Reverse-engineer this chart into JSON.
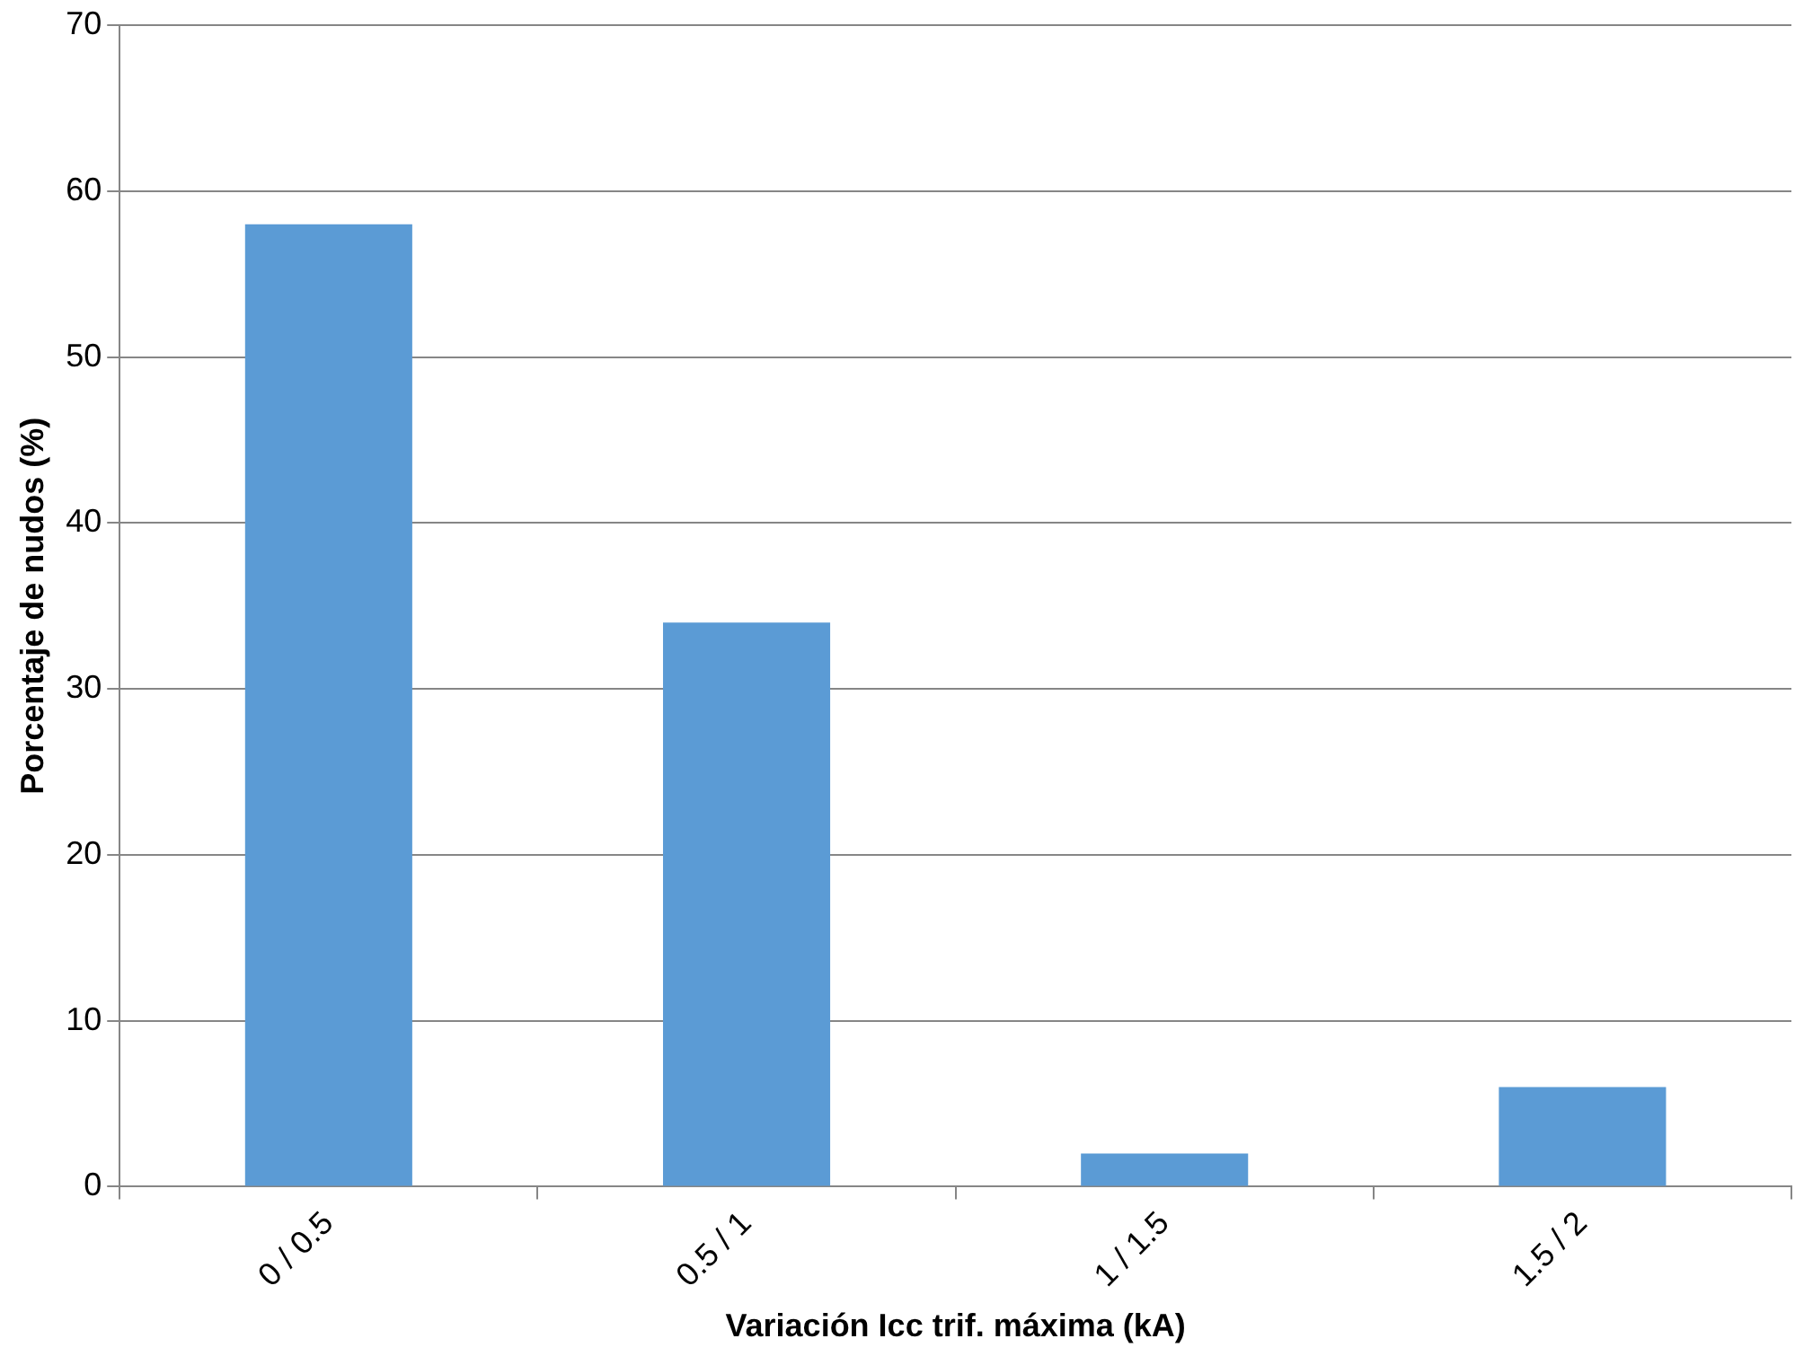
{
  "chart_data": {
    "type": "bar",
    "categories": [
      "0 / 0.5",
      "0.5 / 1",
      "1 / 1.5",
      "1.5 / 2"
    ],
    "values": [
      58,
      34,
      2,
      6
    ],
    "color": "#5b9bd5",
    "xlabel": "Variación Icc trif. máxima (kA)",
    "ylabel": "Porcentaje de nudos (%)",
    "ylim": [
      0,
      70
    ],
    "yticks": [
      0,
      10,
      20,
      30,
      40,
      50,
      60,
      70
    ],
    "grid": "y"
  }
}
